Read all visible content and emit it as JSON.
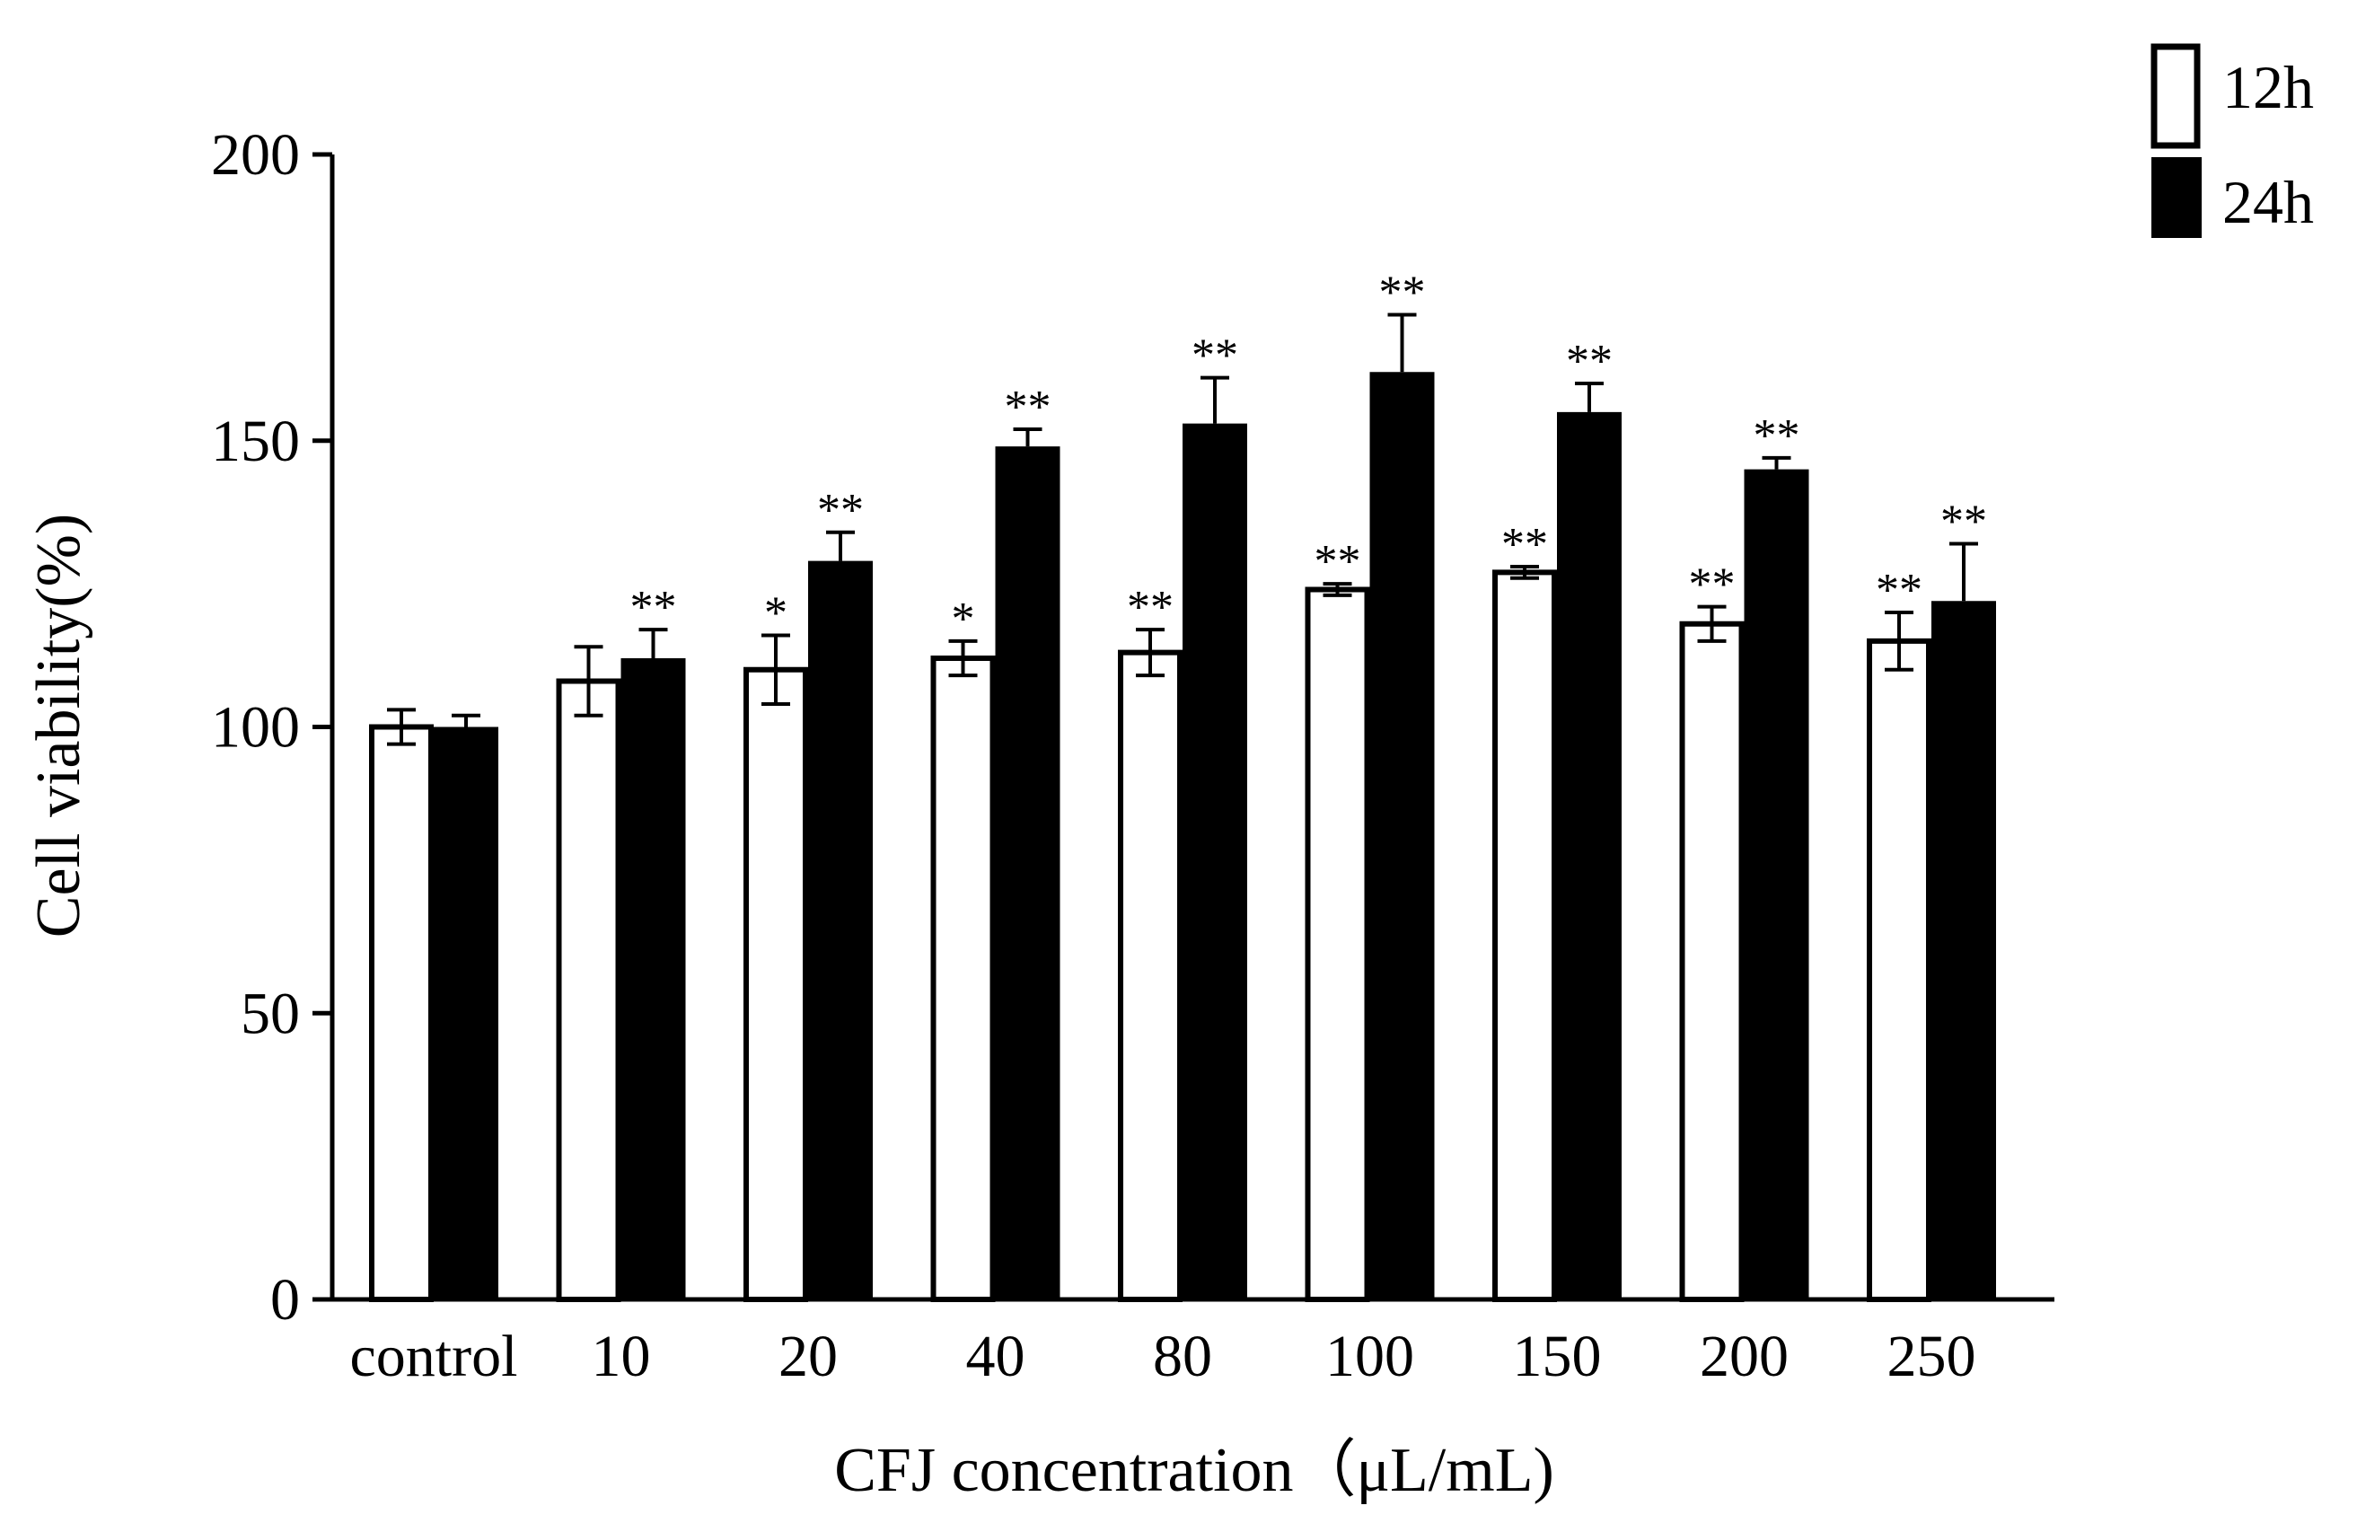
{
  "chart_data": {
    "type": "bar",
    "title": "",
    "xlabel": "CFJ concentration（μL/mL)",
    "ylabel": "Cell viability(%)",
    "ylim": [
      0,
      200
    ],
    "yticks": [
      "0",
      "50",
      "100",
      "150",
      "200"
    ],
    "categories": [
      "control",
      "10",
      "20",
      "40",
      "80",
      "100",
      "150",
      "200",
      "250"
    ],
    "series": [
      {
        "name": "12h",
        "color": "#ffffff",
        "values": [
          100,
          108,
          110,
          112,
          113,
          124,
          127,
          118,
          115
        ],
        "errors": [
          3,
          6,
          6,
          3,
          4,
          1,
          1,
          3,
          5
        ],
        "significance": [
          "",
          "",
          "*",
          "*",
          "**",
          "**",
          "**",
          "**",
          "**"
        ]
      },
      {
        "name": "24h",
        "color": "#000000",
        "values": [
          100,
          112,
          129,
          149,
          153,
          162,
          155,
          145,
          122
        ],
        "errors": [
          2,
          5,
          5,
          3,
          8,
          10,
          5,
          2,
          10
        ],
        "significance": [
          "",
          "**",
          "**",
          "**",
          "**",
          "**",
          "**",
          "**",
          "**"
        ]
      }
    ],
    "legend_position": "top-right"
  }
}
